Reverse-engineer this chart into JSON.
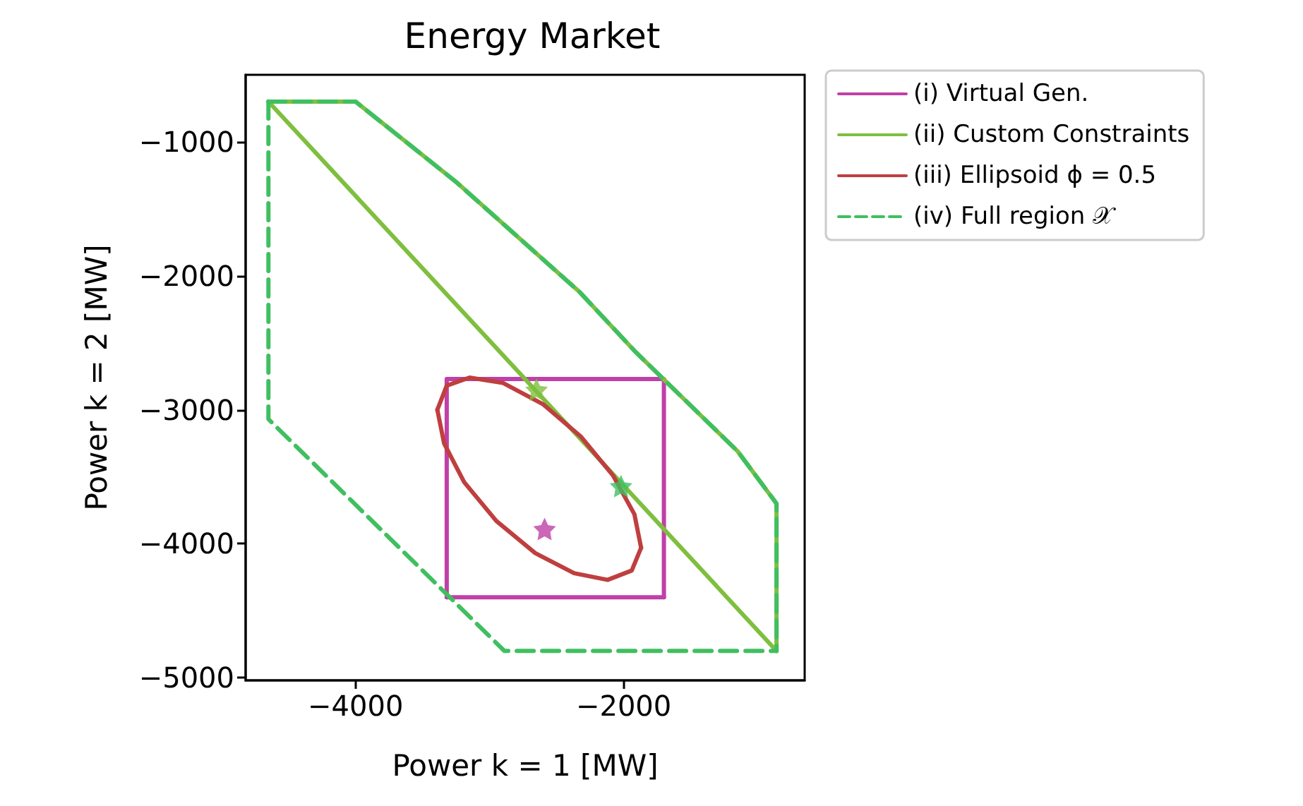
{
  "chart_data": {
    "type": "line",
    "title": "Energy Market",
    "xlabel": "Power k = 1 [MW]",
    "ylabel": "Power k = 2 [MW]",
    "xlim": [
      -4820,
      -650
    ],
    "ylim": [
      -5020,
      -500
    ],
    "xticks": [
      -4000,
      -2000
    ],
    "yticks": [
      -5000,
      -4000,
      -3000,
      -2000,
      -1000
    ],
    "legend": "right",
    "marker": "none",
    "series": [
      {
        "name": "(i) Virtual Gen.",
        "color": "#bf40a8",
        "line_style": "solid",
        "x": [
          -3320,
          -3320,
          -1700,
          -1700
        ],
        "values": [
          -4400,
          -2770,
          -2770,
          -4400
        ]
      },
      {
        "color": "#bf40a8",
        "line_style": "solid",
        "x": [
          -3320,
          -1700
        ],
        "values": [
          -4400,
          -4400
        ]
      },
      {
        "name": "(ii) Custom Constraints",
        "color": "#7fbf3f",
        "line_style": "solid",
        "x": [
          -4650,
          -4000,
          -3600,
          -3250,
          -2330,
          -1910,
          -1150,
          -860,
          -860
        ],
        "values": [
          -700,
          -700,
          -1020,
          -1300,
          -2120,
          -2570,
          -3310,
          -3700,
          -4800
        ]
      },
      {
        "color": "#7fbf3f",
        "line_style": "solid",
        "x": [
          -4650,
          -860
        ],
        "values": [
          -700,
          -4800
        ]
      },
      {
        "name": "(iii) Ellipsoid ϕ = 0.5",
        "color": "#bf3f3f",
        "line_style": "solid",
        "x": [
          -3390,
          -3320,
          -3150,
          -2900,
          -2600,
          -2320,
          -2080,
          -1920,
          -1870
        ],
        "values": [
          -3000,
          -2820,
          -2760,
          -2800,
          -2960,
          -3200,
          -3490,
          -3780,
          -4030
        ]
      },
      {
        "color": "#bf3f3f",
        "line_style": "solid",
        "x": [
          -3390,
          -3340,
          -3190,
          -2950,
          -2660,
          -2370,
          -2120,
          -1940,
          -1870
        ],
        "values": [
          -3000,
          -3250,
          -3540,
          -3830,
          -4070,
          -4220,
          -4270,
          -4200,
          -4030
        ]
      },
      {
        "name": "(iv) Full region 𝒳",
        "color": "#40bf60",
        "line_style": "dashed",
        "x": [
          -4650,
          -4000,
          -3600,
          -3250,
          -2330,
          -1910,
          -1150,
          -860,
          -860
        ],
        "values": [
          -700,
          -700,
          -1020,
          -1300,
          -2120,
          -2570,
          -3310,
          -3700,
          -4800
        ]
      },
      {
        "color": "#40bf60",
        "line_style": "dashed",
        "x": [
          -4650,
          -4650,
          -2890,
          -860
        ],
        "values": [
          -700,
          -3070,
          -4800,
          -4800
        ]
      },
      {
        "type": "scatter",
        "marker": "star",
        "color": "#bf40a8",
        "x": [
          -2590
        ],
        "values": [
          -3890
        ]
      },
      {
        "type": "scatter",
        "marker": "star",
        "color": "#7fbf3f",
        "x": [
          -2650
        ],
        "values": [
          -2850
        ]
      },
      {
        "type": "scatter",
        "marker": "star",
        "color": "#40bf60",
        "x": [
          -2020
        ],
        "values": [
          -3570
        ]
      }
    ]
  }
}
